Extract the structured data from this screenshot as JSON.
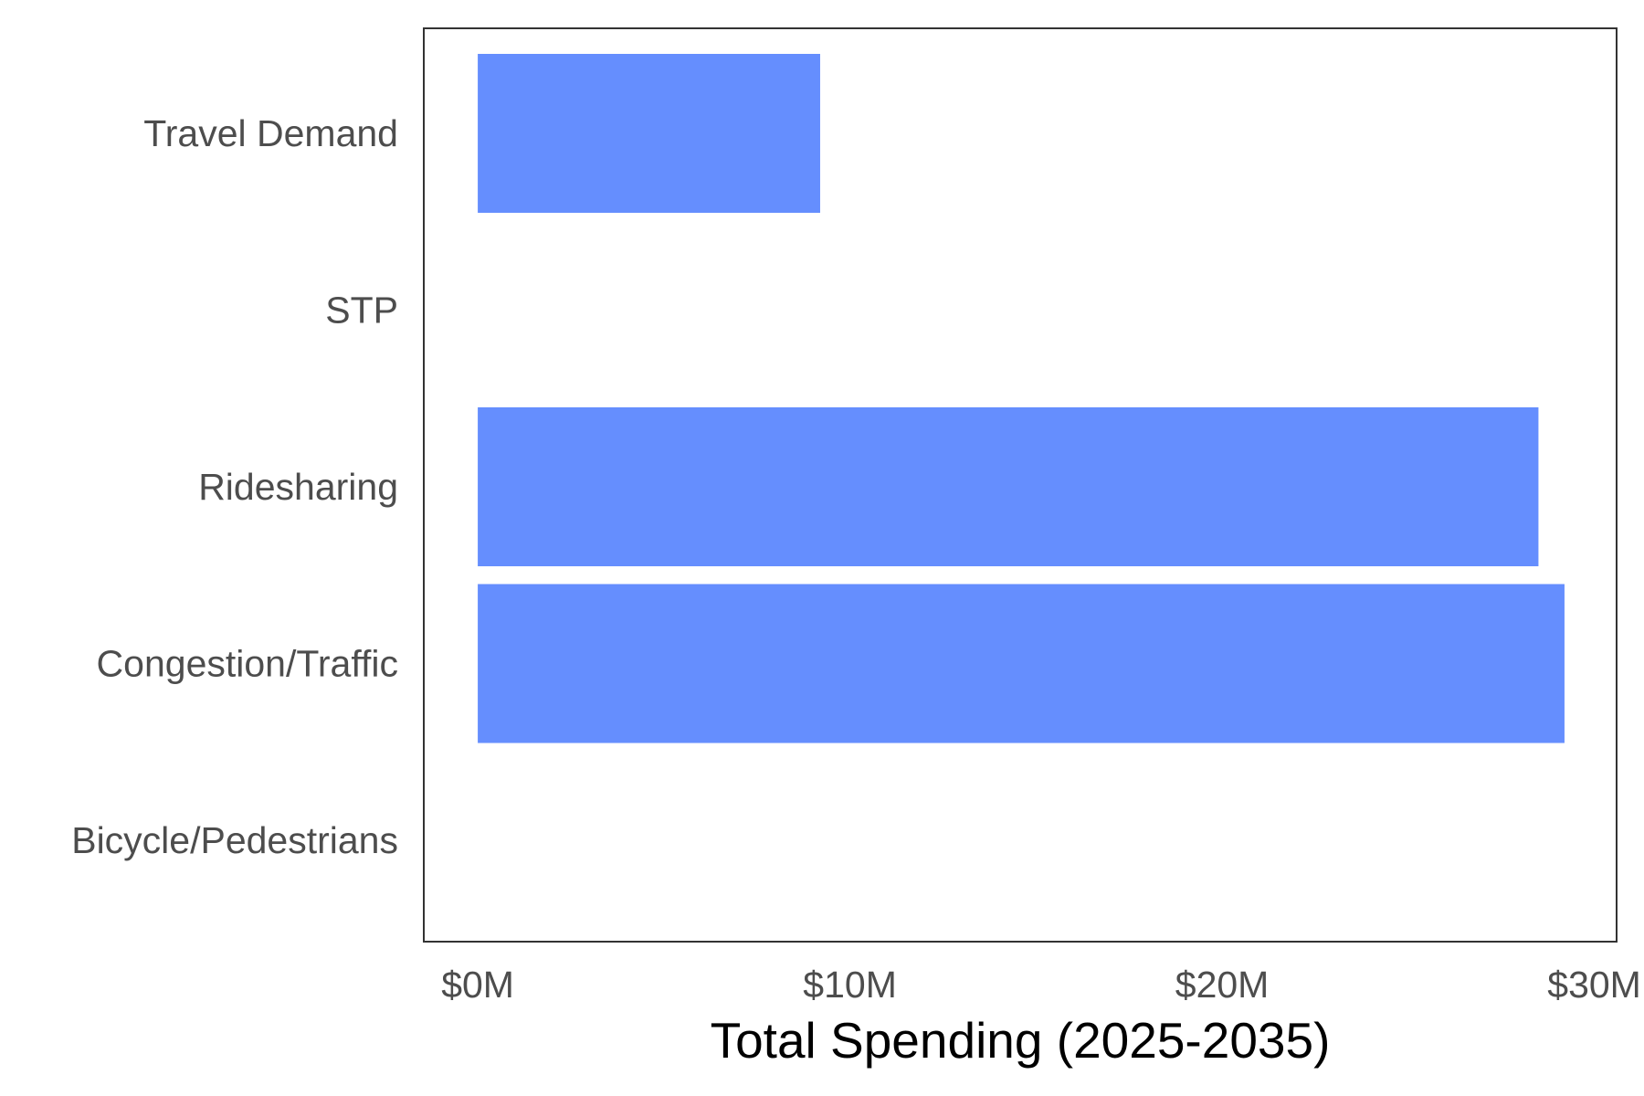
{
  "chart_data": {
    "type": "bar",
    "orientation": "horizontal",
    "categories": [
      "Travel Demand",
      "STP",
      "Ridesharing",
      "Congestion/Traffic",
      "Bicycle/Pedestrians"
    ],
    "values": [
      9.2,
      0,
      28.5,
      29.2,
      0
    ],
    "xlabel": "Total Spending (2025-2035)",
    "ylabel": "",
    "xlim": [
      -1.45,
      30.6
    ],
    "x_ticks": [
      0,
      10,
      20,
      30
    ],
    "x_tick_labels": [
      "$0M",
      "$10M",
      "$20M",
      "$30M"
    ],
    "grid": false,
    "legend": "none",
    "colors": {
      "bar": "#658efe",
      "frame": "#333333",
      "tick_text": "#4d4d4d",
      "axis_title": "#000000"
    }
  }
}
